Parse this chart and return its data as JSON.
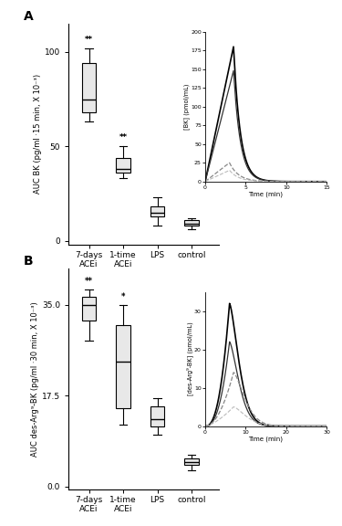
{
  "panel_A": {
    "label": "A",
    "ylabel": "AUC BK (pg/ml ·15 min, X 10⁻³)",
    "yticks": [
      0,
      50,
      100
    ],
    "ylim": [
      -2,
      115
    ],
    "boxes": [
      {
        "label": "7-days\nACEi",
        "whisker_low": 63,
        "q1": 68,
        "median": 75,
        "q3": 94,
        "whisker_high": 102,
        "sig": "**",
        "color": "#e8e8e8"
      },
      {
        "label": "1-time\nACEi",
        "whisker_low": 33,
        "q1": 36,
        "median": 38,
        "q3": 44,
        "whisker_high": 50,
        "sig": "**",
        "color": "#e8e8e8"
      },
      {
        "label": "LPS",
        "whisker_low": 8,
        "q1": 13,
        "median": 15,
        "q3": 18,
        "whisker_high": 23,
        "sig": "",
        "color": "#e8e8e8"
      },
      {
        "label": "control",
        "whisker_low": 6,
        "q1": 8,
        "median": 9,
        "q3": 11,
        "whisker_high": 12,
        "sig": "",
        "color": "#e8e8e8"
      }
    ],
    "inset": {
      "xlim": [
        0,
        15
      ],
      "ylim": [
        0,
        200
      ],
      "xticks": [
        0,
        5,
        10,
        15
      ],
      "yticks": [
        0,
        25,
        50,
        75,
        100,
        125,
        150,
        175,
        200
      ],
      "xlabel": "Time (min)",
      "ylabel": "[BK] (pmol/mL)",
      "curves": [
        {
          "peak_x": 3.5,
          "peak_y": 180,
          "rise_k": 6.0,
          "decay_k": 1.2,
          "style": "solid",
          "color": "black",
          "lw": 1.2
        },
        {
          "peak_x": 3.5,
          "peak_y": 148,
          "rise_k": 6.0,
          "decay_k": 1.2,
          "style": "solid",
          "color": "#333333",
          "lw": 0.9
        },
        {
          "peak_x": 3.0,
          "peak_y": 25,
          "rise_k": 4.0,
          "decay_k": 0.9,
          "style": "dashed",
          "color": "#888888",
          "lw": 0.9
        },
        {
          "peak_x": 3.0,
          "peak_y": 15,
          "rise_k": 3.5,
          "decay_k": 0.9,
          "style": "dashed",
          "color": "#bbbbbb",
          "lw": 0.8
        }
      ]
    }
  },
  "panel_B": {
    "label": "B",
    "ylabel": "AUC des-Arg⁹-BK (pg/ml ·30 min, X 10⁻³)",
    "yticks": [
      0,
      17.5,
      35
    ],
    "ylim": [
      -0.5,
      42
    ],
    "boxes": [
      {
        "label": "7-days\nACEi",
        "whisker_low": 28,
        "q1": 32,
        "median": 35,
        "q3": 36.5,
        "whisker_high": 38,
        "sig": "**",
        "color": "#e8e8e8"
      },
      {
        "label": "1-time\nACEi",
        "whisker_low": 12,
        "q1": 15,
        "median": 24,
        "q3": 31,
        "whisker_high": 35,
        "sig": "*",
        "color": "#e8e8e8"
      },
      {
        "label": "LPS",
        "whisker_low": 10,
        "q1": 11.5,
        "median": 13,
        "q3": 15.5,
        "whisker_high": 17,
        "sig": "",
        "color": "#e8e8e8"
      },
      {
        "label": "control",
        "whisker_low": 3.2,
        "q1": 4.2,
        "median": 4.8,
        "q3": 5.5,
        "whisker_high": 6.2,
        "sig": "",
        "color": "#e8e8e8"
      }
    ],
    "inset": {
      "xlim": [
        0,
        30
      ],
      "ylim": [
        0,
        35
      ],
      "xticks": [
        0,
        10,
        20,
        30
      ],
      "yticks": [
        0,
        10,
        20,
        30
      ],
      "xlabel": "Time (min)",
      "ylabel": "[des-Arg⁹-BK] (pmol/mL)",
      "curves": [
        {
          "peak_x": 6,
          "peak_y": 32,
          "rise_k": 2.5,
          "decay_k": 0.18,
          "style": "solid",
          "color": "black",
          "lw": 1.2
        },
        {
          "peak_x": 6,
          "peak_y": 22,
          "rise_k": 2.5,
          "decay_k": 0.18,
          "style": "solid",
          "color": "#333333",
          "lw": 0.9
        },
        {
          "peak_x": 7,
          "peak_y": 14,
          "rise_k": 2.0,
          "decay_k": 0.14,
          "style": "dashed",
          "color": "#888888",
          "lw": 0.9
        },
        {
          "peak_x": 7,
          "peak_y": 5,
          "rise_k": 1.5,
          "decay_k": 0.12,
          "style": "dashed",
          "color": "#bbbbbb",
          "lw": 0.8
        }
      ]
    }
  }
}
